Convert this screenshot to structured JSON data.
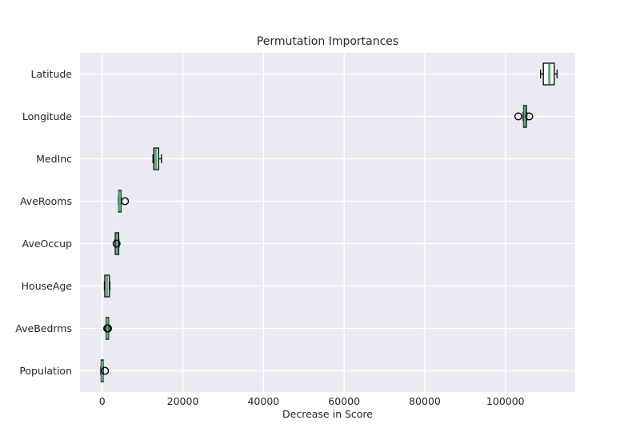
{
  "chart_data": {
    "type": "boxplot",
    "orientation": "horizontal",
    "title": "Permutation Importances",
    "xlabel": "Decrease in Score",
    "ylabel": "",
    "xlim": [
      -5500,
      117300
    ],
    "xticks": [
      0,
      20000,
      40000,
      60000,
      80000,
      100000
    ],
    "xtick_labels": [
      "0",
      "20000",
      "40000",
      "60000",
      "80000",
      "100000"
    ],
    "grid": true,
    "legend_position": "none",
    "categories": [
      "Latitude",
      "Longitude",
      "MedInc",
      "AveRooms",
      "AveOccup",
      "HouseAge",
      "AveBedrms",
      "Population"
    ],
    "boxes": [
      {
        "label": "Latitude",
        "whislo": 108700,
        "q1": 109400,
        "med": 110900,
        "q3": 112100,
        "whishi": 112800,
        "fliers": []
      },
      {
        "label": "Longitude",
        "whislo": 104400,
        "q1": 104500,
        "med": 104800,
        "q3": 105200,
        "whishi": 105300,
        "fliers": [
          103200,
          105900
        ]
      },
      {
        "label": "MedInc",
        "whislo": 12600,
        "q1": 12800,
        "med": 13300,
        "q3": 14000,
        "whishi": 14700,
        "fliers": []
      },
      {
        "label": "AveRooms",
        "whislo": 4050,
        "q1": 4100,
        "med": 4350,
        "q3": 4650,
        "whishi": 4700,
        "fliers": [
          5650
        ]
      },
      {
        "label": "AveOccup",
        "whislo": 3200,
        "q1": 3250,
        "med": 3650,
        "q3": 4100,
        "whishi": 4150,
        "fliers": [
          3570
        ]
      },
      {
        "label": "HouseAge",
        "whislo": 550,
        "q1": 650,
        "med": 1200,
        "q3": 1800,
        "whishi": 1900,
        "fliers": []
      },
      {
        "label": "AveBedrms",
        "whislo": 950,
        "q1": 1000,
        "med": 1300,
        "q3": 1600,
        "whishi": 1650,
        "fliers": [
          1250,
          1450
        ]
      },
      {
        "label": "Population",
        "whislo": -350,
        "q1": -250,
        "med": 0,
        "q3": 250,
        "whishi": 300,
        "fliers": [
          700
        ]
      }
    ],
    "colors": {
      "figure_background": "#ffffff",
      "axes_background": "#eaeaf2",
      "grid": "#ffffff",
      "box_edge": "#000000",
      "box_fill": "#ffffff",
      "median": "#62a878",
      "whisker": "#000000",
      "flier_edge": "#000000",
      "text": "#262626"
    }
  }
}
